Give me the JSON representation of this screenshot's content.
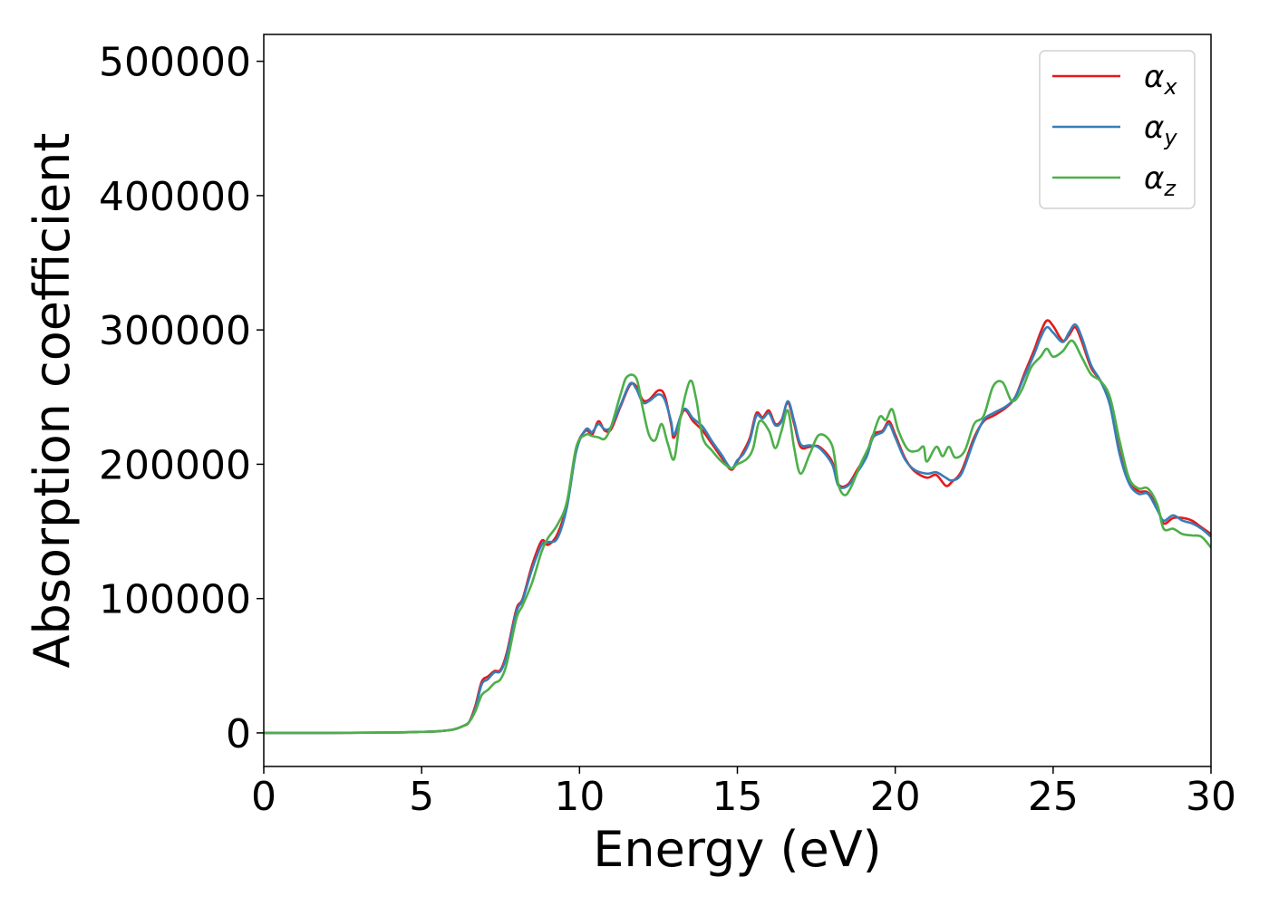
{
  "chart_data": {
    "type": "line",
    "title": "",
    "xlabel": "Energy (eV)",
    "ylabel": "Absorption coefficient",
    "xlim": [
      0,
      30
    ],
    "ylim": [
      -25000,
      520000
    ],
    "xticks": [
      0,
      5,
      10,
      15,
      20,
      25,
      30
    ],
    "xtick_labels": [
      "0",
      "5",
      "10",
      "15",
      "20",
      "25",
      "30"
    ],
    "yticks": [
      0,
      100000,
      200000,
      300000,
      400000,
      500000
    ],
    "ytick_labels": [
      "0",
      "100000",
      "200000",
      "300000",
      "400000",
      "500000"
    ],
    "grid": false,
    "legend_position": "top-right",
    "series": [
      {
        "name": "α_x",
        "symbol": "α",
        "subscript": "x",
        "color": "#e41a1c",
        "points": [
          [
            0,
            0
          ],
          [
            2,
            0
          ],
          [
            4,
            300
          ],
          [
            5,
            800
          ],
          [
            5.5,
            1200
          ],
          [
            6,
            2500
          ],
          [
            6.3,
            5000
          ],
          [
            6.5,
            8000
          ],
          [
            6.7,
            20000
          ],
          [
            6.9,
            38000
          ],
          [
            7.1,
            42000
          ],
          [
            7.3,
            46000
          ],
          [
            7.5,
            47000
          ],
          [
            7.7,
            60000
          ],
          [
            8.0,
            92000
          ],
          [
            8.2,
            100000
          ],
          [
            8.5,
            125000
          ],
          [
            8.8,
            143000
          ],
          [
            9.0,
            140000
          ],
          [
            9.3,
            148000
          ],
          [
            9.6,
            170000
          ],
          [
            9.9,
            212000
          ],
          [
            10.2,
            225000
          ],
          [
            10.4,
            222000
          ],
          [
            10.6,
            232000
          ],
          [
            10.8,
            225000
          ],
          [
            11.0,
            226000
          ],
          [
            11.3,
            243000
          ],
          [
            11.6,
            259000
          ],
          [
            11.8,
            258000
          ],
          [
            12.0,
            248000
          ],
          [
            12.2,
            248000
          ],
          [
            12.5,
            255000
          ],
          [
            12.7,
            251000
          ],
          [
            12.9,
            230000
          ],
          [
            13.0,
            220000
          ],
          [
            13.3,
            240000
          ],
          [
            13.6,
            232000
          ],
          [
            13.9,
            225000
          ],
          [
            14.2,
            215000
          ],
          [
            14.5,
            205000
          ],
          [
            14.8,
            196000
          ],
          [
            15.0,
            202000
          ],
          [
            15.2,
            210000
          ],
          [
            15.4,
            220000
          ],
          [
            15.6,
            238000
          ],
          [
            15.8,
            235000
          ],
          [
            16.0,
            240000
          ],
          [
            16.2,
            230000
          ],
          [
            16.4,
            233000
          ],
          [
            16.6,
            246000
          ],
          [
            16.8,
            230000
          ],
          [
            17.0,
            213000
          ],
          [
            17.3,
            213000
          ],
          [
            17.6,
            213000
          ],
          [
            18.0,
            202000
          ],
          [
            18.2,
            185000
          ],
          [
            18.5,
            185000
          ],
          [
            18.8,
            196000
          ],
          [
            19.1,
            208000
          ],
          [
            19.3,
            222000
          ],
          [
            19.6,
            225000
          ],
          [
            19.8,
            232000
          ],
          [
            20.0,
            222000
          ],
          [
            20.3,
            205000
          ],
          [
            20.6,
            195000
          ],
          [
            21.0,
            190000
          ],
          [
            21.3,
            192000
          ],
          [
            21.6,
            184000
          ],
          [
            21.8,
            187000
          ],
          [
            22.1,
            195000
          ],
          [
            22.5,
            220000
          ],
          [
            22.8,
            232000
          ],
          [
            23.1,
            236000
          ],
          [
            23.5,
            242000
          ],
          [
            23.8,
            250000
          ],
          [
            24.1,
            268000
          ],
          [
            24.4,
            285000
          ],
          [
            24.6,
            298000
          ],
          [
            24.8,
            307000
          ],
          [
            25.0,
            303000
          ],
          [
            25.3,
            292000
          ],
          [
            25.5,
            296000
          ],
          [
            25.7,
            302000
          ],
          [
            25.9,
            292000
          ],
          [
            26.2,
            272000
          ],
          [
            26.5,
            262000
          ],
          [
            26.8,
            245000
          ],
          [
            27.1,
            210000
          ],
          [
            27.4,
            188000
          ],
          [
            27.7,
            180000
          ],
          [
            28.0,
            179000
          ],
          [
            28.3,
            168000
          ],
          [
            28.5,
            156000
          ],
          [
            28.8,
            160000
          ],
          [
            29.1,
            160000
          ],
          [
            29.4,
            158000
          ],
          [
            29.7,
            153000
          ],
          [
            30.0,
            148000
          ]
        ]
      },
      {
        "name": "α_y",
        "symbol": "α",
        "subscript": "y",
        "color": "#377eb8",
        "points": [
          [
            0,
            0
          ],
          [
            2,
            0
          ],
          [
            4,
            300
          ],
          [
            5,
            800
          ],
          [
            5.5,
            1200
          ],
          [
            6,
            2500
          ],
          [
            6.3,
            5000
          ],
          [
            6.5,
            8000
          ],
          [
            6.7,
            18000
          ],
          [
            6.9,
            36000
          ],
          [
            7.1,
            40000
          ],
          [
            7.3,
            45000
          ],
          [
            7.5,
            46000
          ],
          [
            7.7,
            58000
          ],
          [
            8.0,
            90000
          ],
          [
            8.2,
            99000
          ],
          [
            8.5,
            122000
          ],
          [
            8.8,
            140000
          ],
          [
            9.0,
            142000
          ],
          [
            9.3,
            145000
          ],
          [
            9.6,
            168000
          ],
          [
            9.9,
            210000
          ],
          [
            10.2,
            226000
          ],
          [
            10.4,
            224000
          ],
          [
            10.6,
            230000
          ],
          [
            10.8,
            226000
          ],
          [
            11.0,
            228000
          ],
          [
            11.3,
            244000
          ],
          [
            11.6,
            260000
          ],
          [
            11.8,
            256000
          ],
          [
            12.0,
            246000
          ],
          [
            12.2,
            247000
          ],
          [
            12.5,
            252000
          ],
          [
            12.7,
            248000
          ],
          [
            12.9,
            232000
          ],
          [
            13.0,
            222000
          ],
          [
            13.3,
            241000
          ],
          [
            13.6,
            234000
          ],
          [
            13.9,
            228000
          ],
          [
            14.2,
            217000
          ],
          [
            14.5,
            207000
          ],
          [
            14.8,
            197000
          ],
          [
            15.0,
            203000
          ],
          [
            15.2,
            208000
          ],
          [
            15.4,
            218000
          ],
          [
            15.6,
            236000
          ],
          [
            15.8,
            234000
          ],
          [
            16.0,
            238000
          ],
          [
            16.2,
            229000
          ],
          [
            16.4,
            232000
          ],
          [
            16.6,
            247000
          ],
          [
            16.8,
            232000
          ],
          [
            17.0,
            215000
          ],
          [
            17.3,
            214000
          ],
          [
            17.6,
            212000
          ],
          [
            18.0,
            200000
          ],
          [
            18.2,
            184000
          ],
          [
            18.5,
            184000
          ],
          [
            18.8,
            194000
          ],
          [
            19.1,
            206000
          ],
          [
            19.3,
            220000
          ],
          [
            19.6,
            224000
          ],
          [
            19.8,
            230000
          ],
          [
            20.0,
            220000
          ],
          [
            20.3,
            204000
          ],
          [
            20.6,
            196000
          ],
          [
            21.0,
            193000
          ],
          [
            21.3,
            194000
          ],
          [
            21.6,
            190000
          ],
          [
            21.8,
            188000
          ],
          [
            22.1,
            193000
          ],
          [
            22.5,
            218000
          ],
          [
            22.8,
            233000
          ],
          [
            23.1,
            238000
          ],
          [
            23.5,
            243000
          ],
          [
            23.8,
            250000
          ],
          [
            24.1,
            266000
          ],
          [
            24.4,
            282000
          ],
          [
            24.6,
            294000
          ],
          [
            24.8,
            302000
          ],
          [
            25.0,
            298000
          ],
          [
            25.3,
            291000
          ],
          [
            25.5,
            298000
          ],
          [
            25.7,
            304000
          ],
          [
            25.9,
            295000
          ],
          [
            26.2,
            274000
          ],
          [
            26.5,
            262000
          ],
          [
            26.8,
            244000
          ],
          [
            27.1,
            208000
          ],
          [
            27.4,
            186000
          ],
          [
            27.7,
            178000
          ],
          [
            28.0,
            178000
          ],
          [
            28.3,
            166000
          ],
          [
            28.5,
            158000
          ],
          [
            28.8,
            162000
          ],
          [
            29.1,
            158000
          ],
          [
            29.4,
            156000
          ],
          [
            29.7,
            152000
          ],
          [
            30.0,
            146000
          ]
        ]
      },
      {
        "name": "α_z",
        "symbol": "α",
        "subscript": "z",
        "color": "#4daf4a",
        "points": [
          [
            0,
            0
          ],
          [
            2,
            0
          ],
          [
            4,
            300
          ],
          [
            5,
            800
          ],
          [
            5.5,
            1200
          ],
          [
            6,
            2500
          ],
          [
            6.3,
            5000
          ],
          [
            6.5,
            8000
          ],
          [
            6.7,
            16000
          ],
          [
            6.9,
            28000
          ],
          [
            7.1,
            32000
          ],
          [
            7.3,
            37000
          ],
          [
            7.5,
            40000
          ],
          [
            7.7,
            52000
          ],
          [
            8.0,
            85000
          ],
          [
            8.2,
            95000
          ],
          [
            8.5,
            112000
          ],
          [
            8.8,
            135000
          ],
          [
            9.0,
            145000
          ],
          [
            9.3,
            155000
          ],
          [
            9.6,
            172000
          ],
          [
            9.9,
            213000
          ],
          [
            10.2,
            222000
          ],
          [
            10.4,
            221000
          ],
          [
            10.6,
            220000
          ],
          [
            10.8,
            219000
          ],
          [
            11.0,
            228000
          ],
          [
            11.3,
            252000
          ],
          [
            11.5,
            265000
          ],
          [
            11.8,
            264000
          ],
          [
            12.0,
            242000
          ],
          [
            12.2,
            222000
          ],
          [
            12.4,
            218000
          ],
          [
            12.6,
            230000
          ],
          [
            12.8,
            215000
          ],
          [
            13.0,
            204000
          ],
          [
            13.2,
            235000
          ],
          [
            13.5,
            262000
          ],
          [
            13.7,
            248000
          ],
          [
            13.9,
            220000
          ],
          [
            14.2,
            210000
          ],
          [
            14.5,
            202000
          ],
          [
            14.8,
            197000
          ],
          [
            15.0,
            200000
          ],
          [
            15.3,
            204000
          ],
          [
            15.5,
            212000
          ],
          [
            15.7,
            232000
          ],
          [
            16.0,
            225000
          ],
          [
            16.2,
            212000
          ],
          [
            16.4,
            225000
          ],
          [
            16.6,
            240000
          ],
          [
            16.8,
            212000
          ],
          [
            17.0,
            193000
          ],
          [
            17.3,
            208000
          ],
          [
            17.6,
            222000
          ],
          [
            18.0,
            214000
          ],
          [
            18.2,
            185000
          ],
          [
            18.4,
            177000
          ],
          [
            18.6,
            183000
          ],
          [
            18.9,
            200000
          ],
          [
            19.2,
            215000
          ],
          [
            19.5,
            235000
          ],
          [
            19.7,
            233000
          ],
          [
            19.9,
            241000
          ],
          [
            20.1,
            225000
          ],
          [
            20.4,
            211000
          ],
          [
            20.7,
            210000
          ],
          [
            20.9,
            213000
          ],
          [
            21.0,
            202000
          ],
          [
            21.3,
            213000
          ],
          [
            21.5,
            206000
          ],
          [
            21.7,
            213000
          ],
          [
            21.9,
            205000
          ],
          [
            22.2,
            210000
          ],
          [
            22.5,
            230000
          ],
          [
            22.8,
            236000
          ],
          [
            23.1,
            258000
          ],
          [
            23.4,
            261000
          ],
          [
            23.7,
            247000
          ],
          [
            24.0,
            255000
          ],
          [
            24.3,
            272000
          ],
          [
            24.6,
            280000
          ],
          [
            24.8,
            286000
          ],
          [
            25.0,
            280000
          ],
          [
            25.3,
            284000
          ],
          [
            25.6,
            292000
          ],
          [
            25.9,
            280000
          ],
          [
            26.2,
            267000
          ],
          [
            26.5,
            262000
          ],
          [
            26.8,
            250000
          ],
          [
            27.1,
            218000
          ],
          [
            27.4,
            190000
          ],
          [
            27.7,
            182000
          ],
          [
            28.0,
            182000
          ],
          [
            28.3,
            170000
          ],
          [
            28.5,
            152000
          ],
          [
            28.8,
            152000
          ],
          [
            29.1,
            148000
          ],
          [
            29.4,
            147000
          ],
          [
            29.7,
            146000
          ],
          [
            30.0,
            138000
          ]
        ]
      }
    ]
  }
}
